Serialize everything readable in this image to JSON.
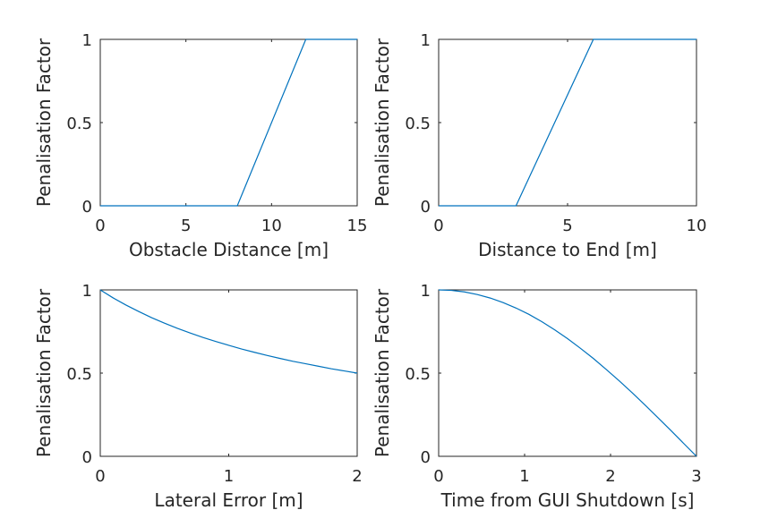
{
  "colors": {
    "line": "#0072BD",
    "axes": "#262626",
    "background": "#ffffff"
  },
  "chart_data": [
    {
      "type": "line",
      "title": "",
      "xlabel": "Obstacle Distance [m]",
      "ylabel": "Penalisation Factor",
      "xlim": [
        0,
        15
      ],
      "ylim": [
        0,
        1
      ],
      "xticks": [
        "0",
        "5",
        "10",
        "15"
      ],
      "yticks": [
        "0",
        "0.5",
        "1"
      ],
      "grid": false,
      "series": [
        {
          "x": [
            0,
            8,
            12,
            15
          ],
          "y": [
            0,
            0,
            1,
            1
          ]
        }
      ]
    },
    {
      "type": "line",
      "title": "",
      "xlabel": "Distance to End [m]",
      "ylabel": "Penalisation Factor",
      "xlim": [
        0,
        10
      ],
      "ylim": [
        0,
        1
      ],
      "xticks": [
        "0",
        "5",
        "10"
      ],
      "yticks": [
        "0",
        "0.5",
        "1"
      ],
      "grid": false,
      "series": [
        {
          "x": [
            0,
            3,
            6,
            10
          ],
          "y": [
            0,
            0,
            1,
            1
          ]
        }
      ]
    },
    {
      "type": "line",
      "title": "",
      "xlabel": "Lateral Error [m]",
      "ylabel": "Penalisation Factor",
      "xlim": [
        0,
        2
      ],
      "ylim": [
        0,
        1
      ],
      "xticks": [
        "0",
        "1",
        "2"
      ],
      "yticks": [
        "0",
        "0.5",
        "1"
      ],
      "grid": false,
      "series": [
        {
          "x": [
            0,
            0.1,
            0.2,
            0.3,
            0.4,
            0.5,
            0.6,
            0.7,
            0.8,
            0.9,
            1.0,
            1.1,
            1.2,
            1.3,
            1.4,
            1.5,
            1.6,
            1.7,
            1.8,
            1.9,
            2.0
          ],
          "y": [
            1.0,
            0.952,
            0.909,
            0.87,
            0.833,
            0.8,
            0.769,
            0.741,
            0.714,
            0.69,
            0.667,
            0.645,
            0.625,
            0.606,
            0.588,
            0.571,
            0.556,
            0.541,
            0.526,
            0.513,
            0.5
          ]
        }
      ]
    },
    {
      "type": "line",
      "title": "",
      "xlabel": "Time from GUI Shutdown [s]",
      "ylabel": "Penalisation Factor",
      "xlim": [
        0,
        3
      ],
      "ylim": [
        0,
        1
      ],
      "xticks": [
        "0",
        "1",
        "2",
        "3"
      ],
      "yticks": [
        "0",
        "0.5",
        "1"
      ],
      "grid": false,
      "series": [
        {
          "x": [
            0,
            0.15,
            0.3,
            0.45,
            0.6,
            0.75,
            0.9,
            1.05,
            1.2,
            1.35,
            1.5,
            1.65,
            1.8,
            1.95,
            2.1,
            2.25,
            2.4,
            2.55,
            2.7,
            2.85,
            3.0
          ],
          "y": [
            1.0,
            0.997,
            0.988,
            0.972,
            0.951,
            0.924,
            0.891,
            0.853,
            0.809,
            0.76,
            0.707,
            0.649,
            0.588,
            0.522,
            0.454,
            0.383,
            0.309,
            0.233,
            0.156,
            0.078,
            0.0
          ]
        }
      ]
    }
  ]
}
